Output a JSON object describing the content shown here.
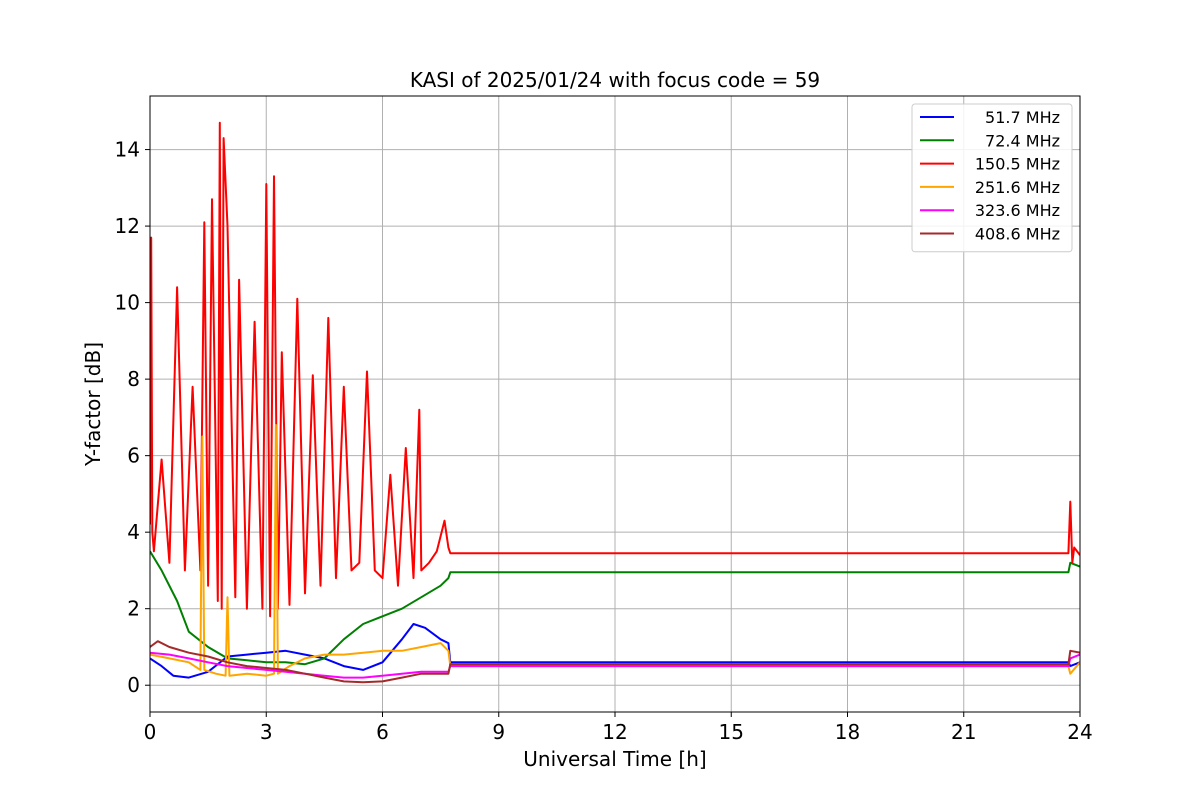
{
  "chart_data": {
    "type": "line",
    "title": "KASI of 2025/01/24 with focus code = 59",
    "xlabel": "Universal Time [h]",
    "ylabel": "Y-factor [dB]",
    "xlim": [
      0,
      24
    ],
    "ylim": [
      -0.7,
      15.4
    ],
    "xticks": [
      0,
      3,
      6,
      9,
      12,
      15,
      18,
      21,
      24
    ],
    "yticks": [
      0,
      2,
      4,
      6,
      8,
      10,
      12,
      14
    ],
    "grid": true,
    "legend_position": "top-right",
    "series": [
      {
        "name": "51.7 MHz",
        "color": "#0000ff",
        "x": [
          0,
          0.3,
          0.6,
          1.0,
          1.5,
          2.0,
          2.5,
          3.0,
          3.5,
          4.0,
          4.5,
          5.0,
          5.5,
          6.0,
          6.5,
          6.8,
          7.1,
          7.5,
          7.7,
          7.75,
          23.7,
          23.75,
          24
        ],
        "y": [
          0.7,
          0.5,
          0.25,
          0.2,
          0.35,
          0.75,
          0.8,
          0.85,
          0.9,
          0.8,
          0.7,
          0.5,
          0.4,
          0.6,
          1.2,
          1.6,
          1.5,
          1.2,
          1.1,
          0.6,
          0.6,
          0.5,
          0.6
        ]
      },
      {
        "name": "72.4 MHz",
        "color": "#008000",
        "x": [
          0,
          0.3,
          0.7,
          1.0,
          1.5,
          2.0,
          2.5,
          3.0,
          3.5,
          4.0,
          4.5,
          5.0,
          5.5,
          6.0,
          6.5,
          7.0,
          7.5,
          7.7,
          7.75,
          23.7,
          23.75,
          24
        ],
        "y": [
          3.5,
          3.0,
          2.2,
          1.4,
          1.0,
          0.7,
          0.65,
          0.6,
          0.6,
          0.55,
          0.7,
          1.2,
          1.6,
          1.8,
          2.0,
          2.3,
          2.6,
          2.8,
          2.95,
          2.95,
          3.2,
          3.1
        ]
      },
      {
        "name": "150.5 MHz",
        "color": "#ff0000",
        "x": [
          0,
          0.03,
          0.06,
          0.1,
          0.3,
          0.5,
          0.7,
          0.9,
          1.1,
          1.3,
          1.4,
          1.5,
          1.6,
          1.75,
          1.8,
          1.85,
          1.9,
          2.0,
          2.2,
          2.3,
          2.5,
          2.7,
          2.9,
          3.0,
          3.1,
          3.2,
          3.3,
          3.4,
          3.6,
          3.8,
          4.0,
          4.2,
          4.4,
          4.6,
          4.8,
          5.0,
          5.2,
          5.4,
          5.6,
          5.8,
          6.0,
          6.2,
          6.4,
          6.6,
          6.8,
          6.95,
          7.0,
          7.2,
          7.4,
          7.6,
          7.7,
          7.75,
          23.7,
          23.75,
          23.8,
          23.85,
          24
        ],
        "y": [
          4.2,
          11.7,
          4.0,
          3.5,
          5.9,
          3.2,
          10.4,
          3.0,
          7.8,
          3.0,
          12.1,
          2.6,
          12.7,
          2.2,
          14.7,
          2.0,
          14.3,
          12.0,
          2.3,
          10.6,
          2.0,
          9.5,
          2.0,
          13.1,
          1.8,
          13.3,
          2.0,
          8.7,
          2.1,
          10.1,
          2.4,
          8.1,
          2.6,
          9.6,
          2.8,
          7.8,
          3.0,
          3.2,
          8.2,
          3.0,
          2.8,
          5.5,
          2.6,
          6.2,
          2.8,
          7.2,
          3.0,
          3.2,
          3.5,
          4.3,
          3.6,
          3.45,
          3.45,
          4.8,
          3.2,
          3.6,
          3.4
        ]
      },
      {
        "name": "251.6 MHz",
        "color": "#ffa500",
        "x": [
          0,
          0.5,
          1.0,
          1.3,
          1.35,
          1.4,
          1.7,
          1.95,
          2.0,
          2.05,
          2.5,
          3.0,
          3.2,
          3.25,
          3.3,
          3.6,
          4.0,
          4.5,
          5.0,
          5.5,
          6.0,
          6.5,
          7.0,
          7.5,
          7.7,
          7.75,
          23.7,
          23.75,
          24
        ],
        "y": [
          0.8,
          0.7,
          0.6,
          0.4,
          6.5,
          0.4,
          0.3,
          0.25,
          2.3,
          0.25,
          0.3,
          0.25,
          0.3,
          6.8,
          0.3,
          0.5,
          0.7,
          0.8,
          0.8,
          0.85,
          0.9,
          0.9,
          1.0,
          1.1,
          0.9,
          0.5,
          0.5,
          0.3,
          0.6
        ]
      },
      {
        "name": "323.6 MHz",
        "color": "#ff00ff",
        "x": [
          0,
          0.5,
          1.0,
          1.5,
          2.0,
          2.5,
          3.0,
          3.5,
          4.0,
          4.5,
          5.0,
          5.5,
          6.0,
          6.5,
          7.0,
          7.5,
          7.7,
          7.75,
          23.7,
          23.75,
          24
        ],
        "y": [
          0.85,
          0.8,
          0.7,
          0.6,
          0.5,
          0.45,
          0.4,
          0.35,
          0.3,
          0.25,
          0.2,
          0.2,
          0.25,
          0.3,
          0.35,
          0.35,
          0.35,
          0.5,
          0.5,
          0.7,
          0.8
        ]
      },
      {
        "name": "408.6 MHz",
        "color": "#a52a2a",
        "x": [
          0,
          0.2,
          0.5,
          1.0,
          1.5,
          2.0,
          2.5,
          3.0,
          3.5,
          4.0,
          4.5,
          5.0,
          5.5,
          6.0,
          6.5,
          7.0,
          7.5,
          7.7,
          7.75,
          23.7,
          23.75,
          24
        ],
        "y": [
          1.0,
          1.15,
          1.0,
          0.85,
          0.75,
          0.6,
          0.5,
          0.45,
          0.4,
          0.3,
          0.2,
          0.1,
          0.08,
          0.1,
          0.2,
          0.3,
          0.3,
          0.3,
          0.55,
          0.55,
          0.9,
          0.85
        ]
      }
    ]
  }
}
